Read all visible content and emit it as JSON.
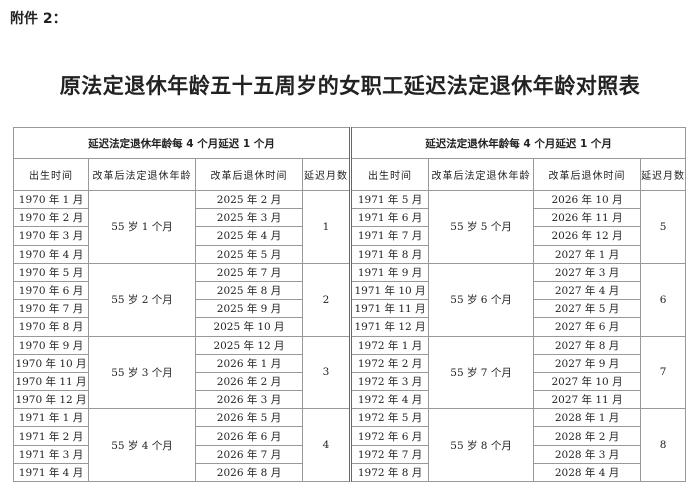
{
  "attachment_label": "附件 2：",
  "title": "原法定退休年龄五十五周岁的女职工延迟法定退休年龄对照表",
  "tables": [
    {
      "group_header": "延迟法定退休年龄每 4 个月延迟 1 个月",
      "columns": [
        "出生时间",
        "改革后法定退休年龄",
        "改革后退休时间",
        "延迟月数"
      ],
      "groups": [
        {
          "age": "55 岁 1 个月",
          "delay": "1",
          "births": [
            "1970 年 1 月",
            "1970 年 2 月",
            "1970 年 3 月",
            "1970 年 4 月"
          ],
          "retire": [
            "2025 年 2 月",
            "2025 年 3 月",
            "2025 年 4 月",
            "2025 年 5 月"
          ]
        },
        {
          "age": "55 岁 2 个月",
          "delay": "2",
          "births": [
            "1970 年 5 月",
            "1970 年 6 月",
            "1970 年 7 月",
            "1970 年 8 月"
          ],
          "retire": [
            "2025 年 7 月",
            "2025 年 8 月",
            "2025 年 9 月",
            "2025 年 10 月"
          ]
        },
        {
          "age": "55 岁 3 个月",
          "delay": "3",
          "births": [
            "1970 年 9 月",
            "1970 年 10 月",
            "1970 年 11 月",
            "1970 年 12 月"
          ],
          "retire": [
            "2025 年 12 月",
            "2026 年 1 月",
            "2026 年 2 月",
            "2026 年 3 月"
          ]
        },
        {
          "age": "55 岁 4 个月",
          "delay": "4",
          "births": [
            "1971 年 1 月",
            "1971 年 2 月",
            "1971 年 3 月",
            "1971 年 4 月"
          ],
          "retire": [
            "2026 年 5 月",
            "2026 年 6 月",
            "2026 年 7 月",
            "2026 年 8 月"
          ]
        }
      ]
    },
    {
      "group_header": "延迟法定退休年龄每 4 个月延迟 1 个月",
      "columns": [
        "出生时间",
        "改革后法定退休年龄",
        "改革后退休时间",
        "延迟月数"
      ],
      "groups": [
        {
          "age": "55 岁 5 个月",
          "delay": "5",
          "births": [
            "1971 年 5 月",
            "1971 年 6 月",
            "1971 年 7 月",
            "1971 年 8 月"
          ],
          "retire": [
            "2026 年 10 月",
            "2026 年 11 月",
            "2026 年 12 月",
            "2027 年 1 月"
          ]
        },
        {
          "age": "55 岁 6 个月",
          "delay": "6",
          "births": [
            "1971 年 9 月",
            "1971 年 10 月",
            "1971 年 11 月",
            "1971 年 12 月"
          ],
          "retire": [
            "2027 年 3 月",
            "2027 年 4 月",
            "2027 年 5 月",
            "2027 年 6 月"
          ]
        },
        {
          "age": "55 岁 7 个月",
          "delay": "7",
          "births": [
            "1972 年 1 月",
            "1972 年 2 月",
            "1972 年 3 月",
            "1972 年 4 月"
          ],
          "retire": [
            "2027 年 8 月",
            "2027 年 9 月",
            "2027 年 10 月",
            "2027 年 11 月"
          ]
        },
        {
          "age": "55 岁 8 个月",
          "delay": "8",
          "births": [
            "1972 年 5 月",
            "1972 年 6 月",
            "1972 年 7 月",
            "1972 年 8 月"
          ],
          "retire": [
            "2028 年 1 月",
            "2028 年 2 月",
            "2028 年 3 月",
            "2028 年 4 月"
          ]
        }
      ]
    }
  ]
}
